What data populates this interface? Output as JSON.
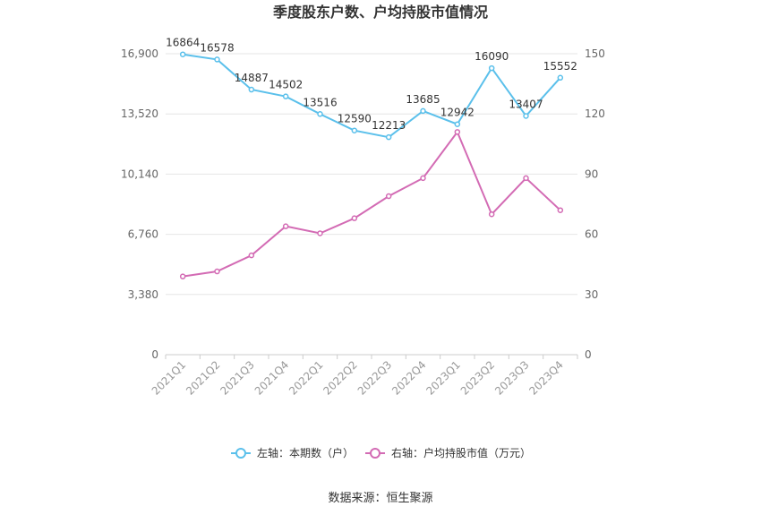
{
  "chart_data": {
    "type": "line",
    "title": "季度股东户数、户均持股市值情况",
    "categories": [
      "2021Q1",
      "2021Q2",
      "2021Q3",
      "2021Q4",
      "2022Q1",
      "2022Q2",
      "2022Q3",
      "2022Q4",
      "2023Q1",
      "2023Q2",
      "2023Q3",
      "2023Q4"
    ],
    "left_axis": {
      "min": 0,
      "max": 16900,
      "ticks": [
        "0",
        "3,380",
        "6,760",
        "10,140",
        "13,520",
        "16,900"
      ]
    },
    "right_axis": {
      "min": 0,
      "max": 150,
      "ticks": [
        "0",
        "30",
        "60",
        "90",
        "120",
        "150"
      ]
    },
    "series": [
      {
        "name": "左轴：本期数（户）",
        "axis": "left",
        "color": "#5bc0eb",
        "values": [
          16864,
          16578,
          14887,
          14502,
          13516,
          12590,
          12213,
          13685,
          12942,
          16090,
          13407,
          15552
        ],
        "labels": [
          "16864",
          "16578",
          "14887",
          "14502",
          "13516",
          "12590",
          "12213",
          "13685",
          "12942",
          "16090",
          "13407",
          "15552"
        ]
      },
      {
        "name": "右轴：户均持股市值（万元）",
        "axis": "right",
        "color": "#d36bb4",
        "values": [
          39.0,
          41.5,
          49.5,
          64.0,
          60.5,
          68.0,
          79.0,
          88.0,
          111.0,
          70.0,
          88.0,
          72.0
        ]
      }
    ],
    "grid": true,
    "legend_position": "bottom"
  },
  "source": "数据来源：恒生聚源"
}
